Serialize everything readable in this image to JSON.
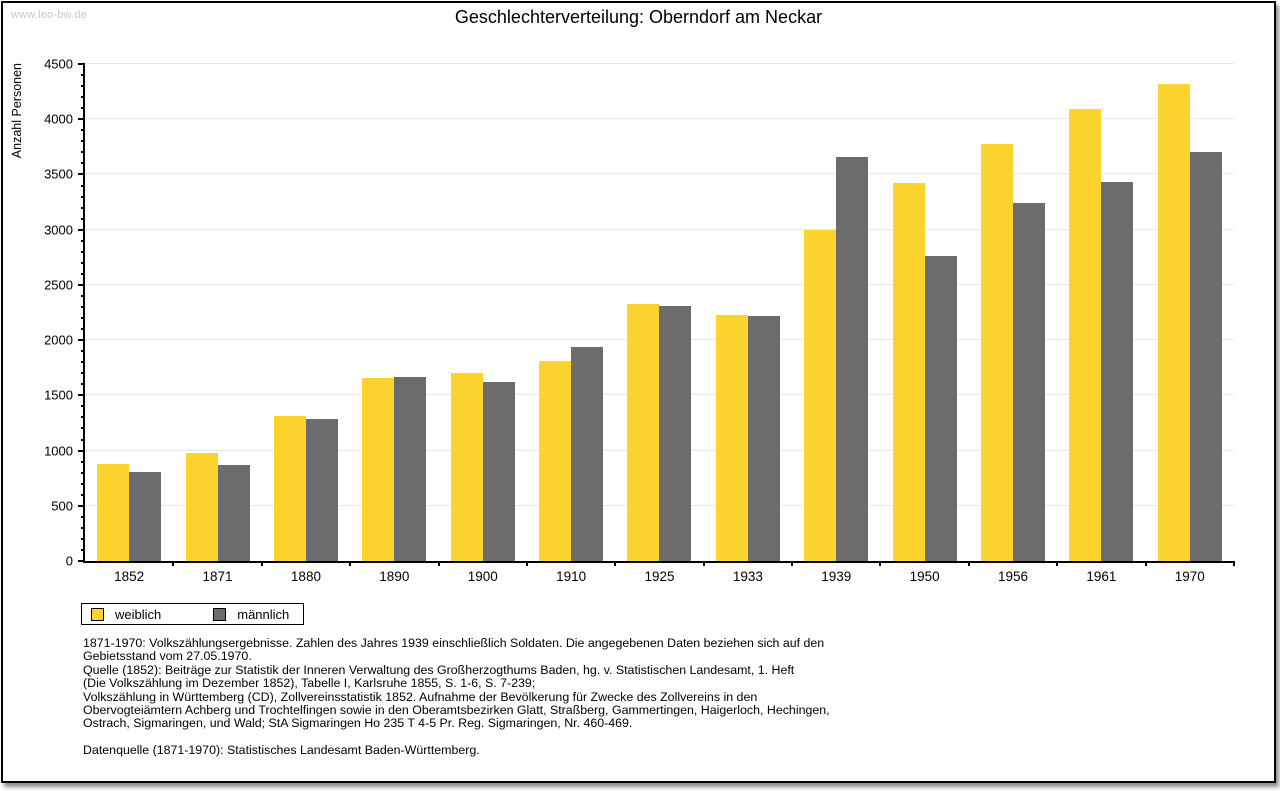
{
  "watermark": "www.leo-bw.de",
  "title": "Geschlechterverteilung: Oberndorf am Neckar",
  "chart_data": {
    "type": "bar",
    "title": "Geschlechterverteilung: Oberndorf am Neckar",
    "xlabel": "",
    "ylabel": "Anzahl Personen",
    "ylim": [
      0,
      4500
    ],
    "yticks": [
      0,
      500,
      1000,
      1500,
      2000,
      2500,
      3000,
      3500,
      4000,
      4500
    ],
    "ytick_step": 500,
    "minor_tick_step": 100,
    "grid": true,
    "legend_position": "bottom-left",
    "categories": [
      "1852",
      "1871",
      "1880",
      "1890",
      "1900",
      "1910",
      "1925",
      "1933",
      "1939",
      "1950",
      "1956",
      "1961",
      "1970"
    ],
    "series": [
      {
        "name": "weiblich",
        "color": "#fcd42d",
        "values": [
          880,
          980,
          1310,
          1655,
          1700,
          1810,
          2325,
          2230,
          3000,
          3420,
          3780,
          4095,
          4320
        ]
      },
      {
        "name": "männlich",
        "color": "#6c6c6c",
        "values": [
          805,
          870,
          1290,
          1665,
          1625,
          1940,
          2310,
          2220,
          3660,
          2760,
          3245,
          3430,
          3705
        ]
      }
    ]
  },
  "notes": {
    "para1": "1871-1970: Volkszählungsergebnisse. Zahlen des Jahres 1939 einschließlich Soldaten. Die angegebenen Daten beziehen sich auf den\nGebietsstand vom 27.05.1970.\nQuelle (1852): Beiträge zur Statistik der Inneren Verwaltung des Großherzogthums Baden, hg. v. Statistischen Landesamt, 1. Heft\n(Die Volkszählung im Dezember 1852), Tabelle I, Karlsruhe 1855, S. 1-6, S. 7-239;\nVolkszählung in Württemberg (CD), Zollvereinsstatistik 1852. Aufnahme der Bevölkerung für Zwecke des Zollvereins in den\nObervogteiämtern Achberg und Trochtelfingen sowie in den Oberamtsbezirken Glatt, Straßberg, Gammertingen, Haigerloch, Hechingen,\nOstrach, Sigmaringen, und Wald; StA Sigmaringen Ho 235 T 4-5 Pr. Reg. Sigmaringen, Nr. 460-469.",
    "para2": "Datenquelle (1871-1970): Statistisches Landesamt Baden-Württemberg."
  }
}
